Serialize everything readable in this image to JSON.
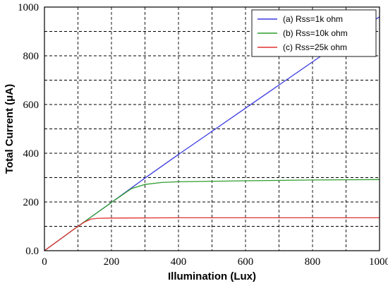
{
  "chart_data": {
    "type": "line",
    "title": "",
    "xlabel": "Illumination (Lux)",
    "ylabel": "Total Current (μA)",
    "xlim": [
      0,
      1000
    ],
    "ylim": [
      0,
      1000
    ],
    "x_ticks": [
      "0",
      "200",
      "400",
      "600",
      "800",
      "1000"
    ],
    "y_ticks": [
      "0.0",
      "200",
      "400",
      "600",
      "800",
      "1000"
    ],
    "grid": true,
    "legend_position": "top-right",
    "series": [
      {
        "name": "(a) Rss=1k ohm",
        "color": "#3a3ae0",
        "x": [
          0,
          100,
          200,
          300,
          400,
          500,
          600,
          700,
          800,
          900,
          1000
        ],
        "y": [
          0,
          100,
          198,
          298,
          395,
          490,
          585,
          680,
          775,
          870,
          960
        ]
      },
      {
        "name": "(b) Rss=10k ohm",
        "color": "#2e9e2e",
        "x": [
          0,
          100,
          200,
          260,
          300,
          350,
          400,
          600,
          800,
          1000
        ],
        "y": [
          0,
          100,
          198,
          255,
          272,
          280,
          283,
          287,
          290,
          292
        ]
      },
      {
        "name": "(c) Rss=25k ohm",
        "color": "#e03030",
        "x": [
          0,
          80,
          100,
          120,
          140,
          160,
          200,
          400,
          600,
          800,
          1000
        ],
        "y": [
          0,
          80,
          100,
          118,
          130,
          133,
          134,
          135,
          135,
          135,
          135
        ]
      }
    ]
  }
}
